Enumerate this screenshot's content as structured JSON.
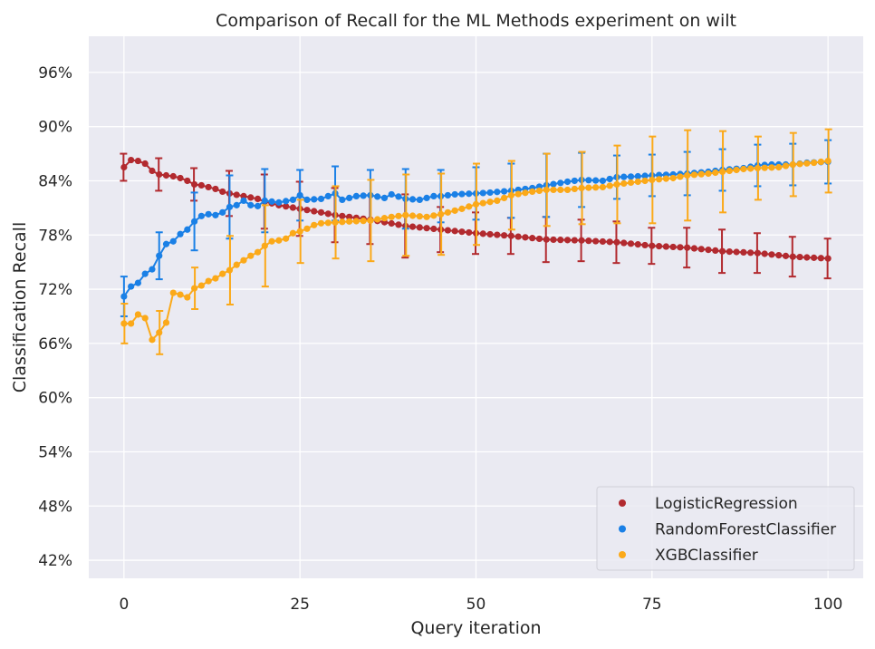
{
  "chart_data": {
    "type": "line",
    "title": "Comparison of Recall for the ML Methods experiment on wilt",
    "xlabel": "Query iteration",
    "ylabel": "Classification Recall",
    "xlim": [
      -5,
      105
    ],
    "ylim": [
      40,
      100
    ],
    "x_ticks": [
      0,
      25,
      50,
      75,
      100
    ],
    "y_ticks": [
      42,
      48,
      54,
      60,
      66,
      72,
      78,
      84,
      90,
      96
    ],
    "y_tick_labels": [
      "42%",
      "48%",
      "54%",
      "60%",
      "66%",
      "72%",
      "78%",
      "84%",
      "90%",
      "96%"
    ],
    "grid": true,
    "legend_position": "lower-right",
    "errorbar_every": 5,
    "series": [
      {
        "name": "LogisticRegression",
        "color": "#b22a2f",
        "anchors": [
          [
            0,
            85.5
          ],
          [
            1,
            86.3
          ],
          [
            2,
            86.2
          ],
          [
            3,
            85.9
          ],
          [
            4,
            85.1
          ],
          [
            5,
            84.7
          ],
          [
            6,
            84.6
          ],
          [
            7,
            84.5
          ],
          [
            8,
            84.3
          ],
          [
            9,
            84.0
          ],
          [
            10,
            83.6
          ],
          [
            11,
            83.5
          ],
          [
            12,
            83.3
          ],
          [
            13,
            83.1
          ],
          [
            14,
            82.8
          ],
          [
            15,
            82.6
          ],
          [
            17,
            82.3
          ],
          [
            19,
            82.0
          ],
          [
            20,
            81.7
          ],
          [
            22,
            81.3
          ],
          [
            25,
            80.9
          ],
          [
            28,
            80.5
          ],
          [
            30,
            80.2
          ],
          [
            35,
            79.7
          ],
          [
            40,
            79.0
          ],
          [
            45,
            78.6
          ],
          [
            50,
            78.2
          ],
          [
            55,
            77.9
          ],
          [
            60,
            77.5
          ],
          [
            65,
            77.4
          ],
          [
            70,
            77.2
          ],
          [
            75,
            76.8
          ],
          [
            80,
            76.6
          ],
          [
            85,
            76.2
          ],
          [
            90,
            76.0
          ],
          [
            95,
            75.6
          ],
          [
            100,
            75.4
          ]
        ],
        "err": [
          [
            0,
            1.5
          ],
          [
            5,
            1.8
          ],
          [
            10,
            1.8
          ],
          [
            15,
            2.5
          ],
          [
            20,
            3.0
          ],
          [
            25,
            3.0
          ],
          [
            30,
            3.0
          ],
          [
            35,
            2.7
          ],
          [
            40,
            3.5
          ],
          [
            45,
            2.5
          ],
          [
            50,
            2.3
          ],
          [
            55,
            2.0
          ],
          [
            60,
            2.5
          ],
          [
            65,
            2.3
          ],
          [
            70,
            2.3
          ],
          [
            75,
            2.0
          ],
          [
            80,
            2.2
          ],
          [
            85,
            2.4
          ],
          [
            90,
            2.2
          ],
          [
            95,
            2.2
          ],
          [
            100,
            2.2
          ]
        ]
      },
      {
        "name": "RandomForestClassifier",
        "color": "#1a80e6",
        "anchors": [
          [
            0,
            71.2
          ],
          [
            1,
            72.3
          ],
          [
            2,
            72.7
          ],
          [
            3,
            73.7
          ],
          [
            4,
            74.2
          ],
          [
            5,
            75.7
          ],
          [
            6,
            77.0
          ],
          [
            7,
            77.3
          ],
          [
            8,
            78.1
          ],
          [
            9,
            78.6
          ],
          [
            10,
            79.5
          ],
          [
            11,
            80.1
          ],
          [
            12,
            80.3
          ],
          [
            13,
            80.2
          ],
          [
            14,
            80.5
          ],
          [
            15,
            81.1
          ],
          [
            16,
            81.3
          ],
          [
            17,
            81.8
          ],
          [
            18,
            81.3
          ],
          [
            19,
            81.2
          ],
          [
            20,
            81.8
          ],
          [
            22,
            81.6
          ],
          [
            24,
            81.9
          ],
          [
            25,
            82.4
          ],
          [
            26,
            81.9
          ],
          [
            28,
            82.0
          ],
          [
            30,
            82.6
          ],
          [
            31,
            81.9
          ],
          [
            33,
            82.3
          ],
          [
            35,
            82.4
          ],
          [
            37,
            82.1
          ],
          [
            38,
            82.5
          ],
          [
            40,
            82.0
          ],
          [
            42,
            81.9
          ],
          [
            44,
            82.3
          ],
          [
            45,
            82.3
          ],
          [
            47,
            82.5
          ],
          [
            50,
            82.6
          ],
          [
            52,
            82.7
          ],
          [
            55,
            82.9
          ],
          [
            58,
            83.2
          ],
          [
            60,
            83.5
          ],
          [
            63,
            83.9
          ],
          [
            65,
            84.1
          ],
          [
            68,
            84.0
          ],
          [
            70,
            84.4
          ],
          [
            73,
            84.5
          ],
          [
            75,
            84.6
          ],
          [
            78,
            84.7
          ],
          [
            80,
            84.8
          ],
          [
            83,
            85.0
          ],
          [
            85,
            85.2
          ],
          [
            88,
            85.4
          ],
          [
            90,
            85.7
          ],
          [
            92,
            85.8
          ],
          [
            95,
            85.8
          ],
          [
            97,
            86.0
          ],
          [
            100,
            86.1
          ]
        ],
        "err": [
          [
            0,
            2.2
          ],
          [
            5,
            2.6
          ],
          [
            10,
            3.2
          ],
          [
            15,
            3.5
          ],
          [
            20,
            3.5
          ],
          [
            25,
            2.8
          ],
          [
            30,
            3.0
          ],
          [
            35,
            2.8
          ],
          [
            40,
            3.3
          ],
          [
            45,
            2.9
          ],
          [
            50,
            2.9
          ],
          [
            55,
            3.0
          ],
          [
            60,
            3.5
          ],
          [
            65,
            3.0
          ],
          [
            70,
            2.4
          ],
          [
            75,
            2.3
          ],
          [
            80,
            2.4
          ],
          [
            85,
            2.3
          ],
          [
            90,
            2.3
          ],
          [
            95,
            2.3
          ],
          [
            100,
            2.4
          ]
        ]
      },
      {
        "name": "XGBClassifier",
        "color": "#fba919",
        "anchors": [
          [
            0,
            68.2
          ],
          [
            1,
            68.2
          ],
          [
            2,
            69.2
          ],
          [
            3,
            68.8
          ],
          [
            4,
            66.4
          ],
          [
            5,
            67.2
          ],
          [
            6,
            68.3
          ],
          [
            7,
            71.6
          ],
          [
            8,
            71.4
          ],
          [
            9,
            71.1
          ],
          [
            10,
            72.1
          ],
          [
            11,
            72.4
          ],
          [
            12,
            72.9
          ],
          [
            13,
            73.2
          ],
          [
            14,
            73.7
          ],
          [
            15,
            74.1
          ],
          [
            16,
            74.7
          ],
          [
            17,
            75.2
          ],
          [
            18,
            75.7
          ],
          [
            19,
            76.1
          ],
          [
            20,
            76.8
          ],
          [
            21,
            77.3
          ],
          [
            22,
            77.4
          ],
          [
            23,
            77.6
          ],
          [
            24,
            78.2
          ],
          [
            25,
            78.4
          ],
          [
            26,
            78.7
          ],
          [
            27,
            79.1
          ],
          [
            28,
            79.3
          ],
          [
            30,
            79.4
          ],
          [
            32,
            79.5
          ],
          [
            35,
            79.6
          ],
          [
            38,
            80.0
          ],
          [
            40,
            80.2
          ],
          [
            43,
            80.0
          ],
          [
            45,
            80.3
          ],
          [
            48,
            80.9
          ],
          [
            50,
            81.4
          ],
          [
            53,
            81.8
          ],
          [
            55,
            82.4
          ],
          [
            58,
            82.8
          ],
          [
            60,
            83.0
          ],
          [
            63,
            83.0
          ],
          [
            65,
            83.2
          ],
          [
            68,
            83.3
          ],
          [
            70,
            83.6
          ],
          [
            73,
            83.9
          ],
          [
            75,
            84.1
          ],
          [
            78,
            84.3
          ],
          [
            80,
            84.6
          ],
          [
            83,
            84.8
          ],
          [
            85,
            85.0
          ],
          [
            88,
            85.3
          ],
          [
            90,
            85.4
          ],
          [
            93,
            85.5
          ],
          [
            95,
            85.8
          ],
          [
            98,
            86.0
          ],
          [
            100,
            86.2
          ]
        ],
        "err": [
          [
            0,
            2.2
          ],
          [
            5,
            2.4
          ],
          [
            10,
            2.3
          ],
          [
            15,
            3.8
          ],
          [
            20,
            4.5
          ],
          [
            25,
            3.5
          ],
          [
            30,
            4.0
          ],
          [
            35,
            4.5
          ],
          [
            40,
            4.5
          ],
          [
            45,
            4.5
          ],
          [
            50,
            4.5
          ],
          [
            55,
            3.8
          ],
          [
            60,
            4.0
          ],
          [
            65,
            4.0
          ],
          [
            70,
            4.3
          ],
          [
            75,
            4.8
          ],
          [
            80,
            5.0
          ],
          [
            85,
            4.5
          ],
          [
            90,
            3.5
          ],
          [
            95,
            3.5
          ],
          [
            100,
            3.5
          ]
        ]
      }
    ]
  }
}
